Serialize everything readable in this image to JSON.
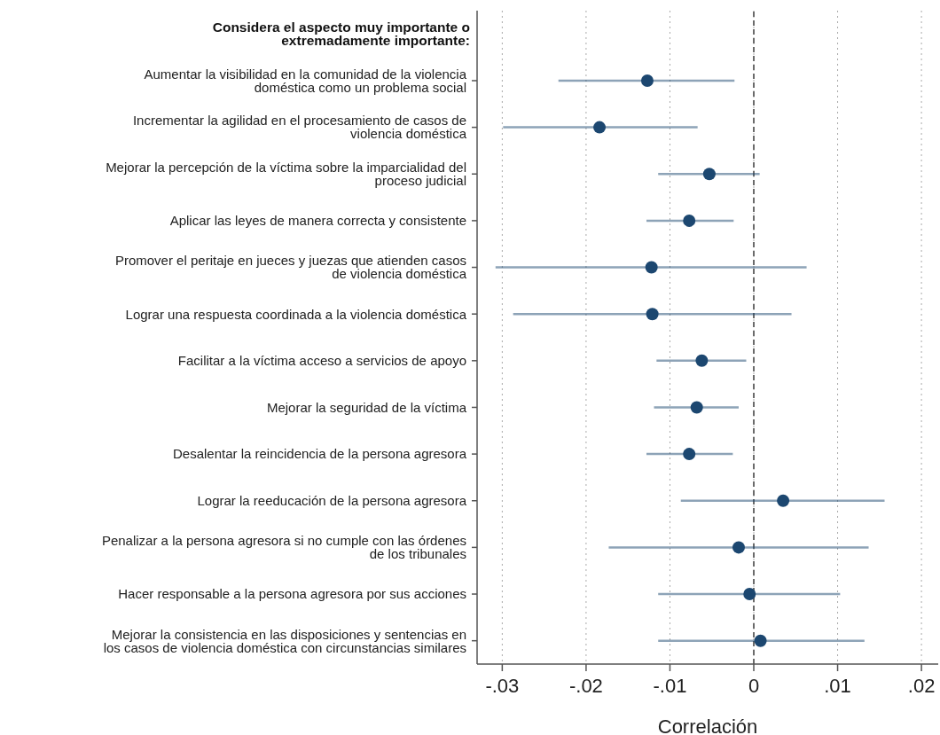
{
  "chart_data": {
    "type": "scatter",
    "orientation": "horizontal",
    "title": "Considera el aspecto muy importante o extremadamente importante:",
    "xlabel": "Correlación",
    "categories": [
      "Aumentar la visibilidad en la comunidad de la violencia doméstica como un problema social",
      "Incrementar la agilidad en el procesamiento de casos de violencia doméstica",
      "Mejorar la percepción de la víctima sobre la imparcialidad del proceso judicial",
      "Aplicar las leyes de manera correcta y consistente",
      "Promover el peritaje en jueces y juezas que atienden casos de violencia doméstica",
      "Lograr una respuesta coordinada a la violencia doméstica",
      "Facilitar a la víctima acceso a servicios de apoyo",
      "Mejorar la seguridad de la víctima",
      "Desalentar la reincidencia de la persona agresora",
      "Lograr la reeducación de la persona agresora",
      "Penalizar a la persona agresora si no cumple con las órdenes de los tribunales",
      "Hacer responsable a la persona agresora por sus acciones",
      "Mejorar la consistencia en las disposiciones y sentencias en los casos de violencia doméstica con circunstancias similares"
    ],
    "values": [
      -0.0127,
      -0.0184,
      -0.0053,
      -0.0077,
      -0.0122,
      -0.0121,
      -0.0062,
      -0.0068,
      -0.0077,
      0.0035,
      -0.0018,
      -0.0005,
      0.0008
    ],
    "errors": [
      [
        -0.0233,
        -0.0023
      ],
      [
        -0.0299,
        -0.0067
      ],
      [
        -0.0114,
        0.0007
      ],
      [
        -0.0128,
        -0.0024
      ],
      [
        -0.0308,
        0.0063
      ],
      [
        -0.0287,
        0.0045
      ],
      [
        -0.0116,
        -0.0009
      ],
      [
        -0.0119,
        -0.0018
      ],
      [
        -0.0128,
        -0.0025
      ],
      [
        -0.0087,
        0.0156
      ],
      [
        -0.0173,
        0.0137
      ],
      [
        -0.0114,
        0.0103
      ],
      [
        -0.0114,
        0.0132
      ]
    ],
    "color": "#1c4770",
    "marker": "circle",
    "xlim": [
      -0.033,
      0.022
    ],
    "xticks": [
      {
        "value": -0.03,
        "label": "-.03"
      },
      {
        "value": -0.02,
        "label": "-.02"
      },
      {
        "value": -0.01,
        "label": "-.01"
      },
      0,
      {
        "value": 0.01,
        "label": ".01"
      },
      {
        "value": 0.02,
        "label": ".02"
      }
    ],
    "grid": "x",
    "ref_lines": [
      {
        "axis": "x",
        "value": 0,
        "color": "#6b6b6b",
        "line_style": "dashed"
      }
    ]
  }
}
